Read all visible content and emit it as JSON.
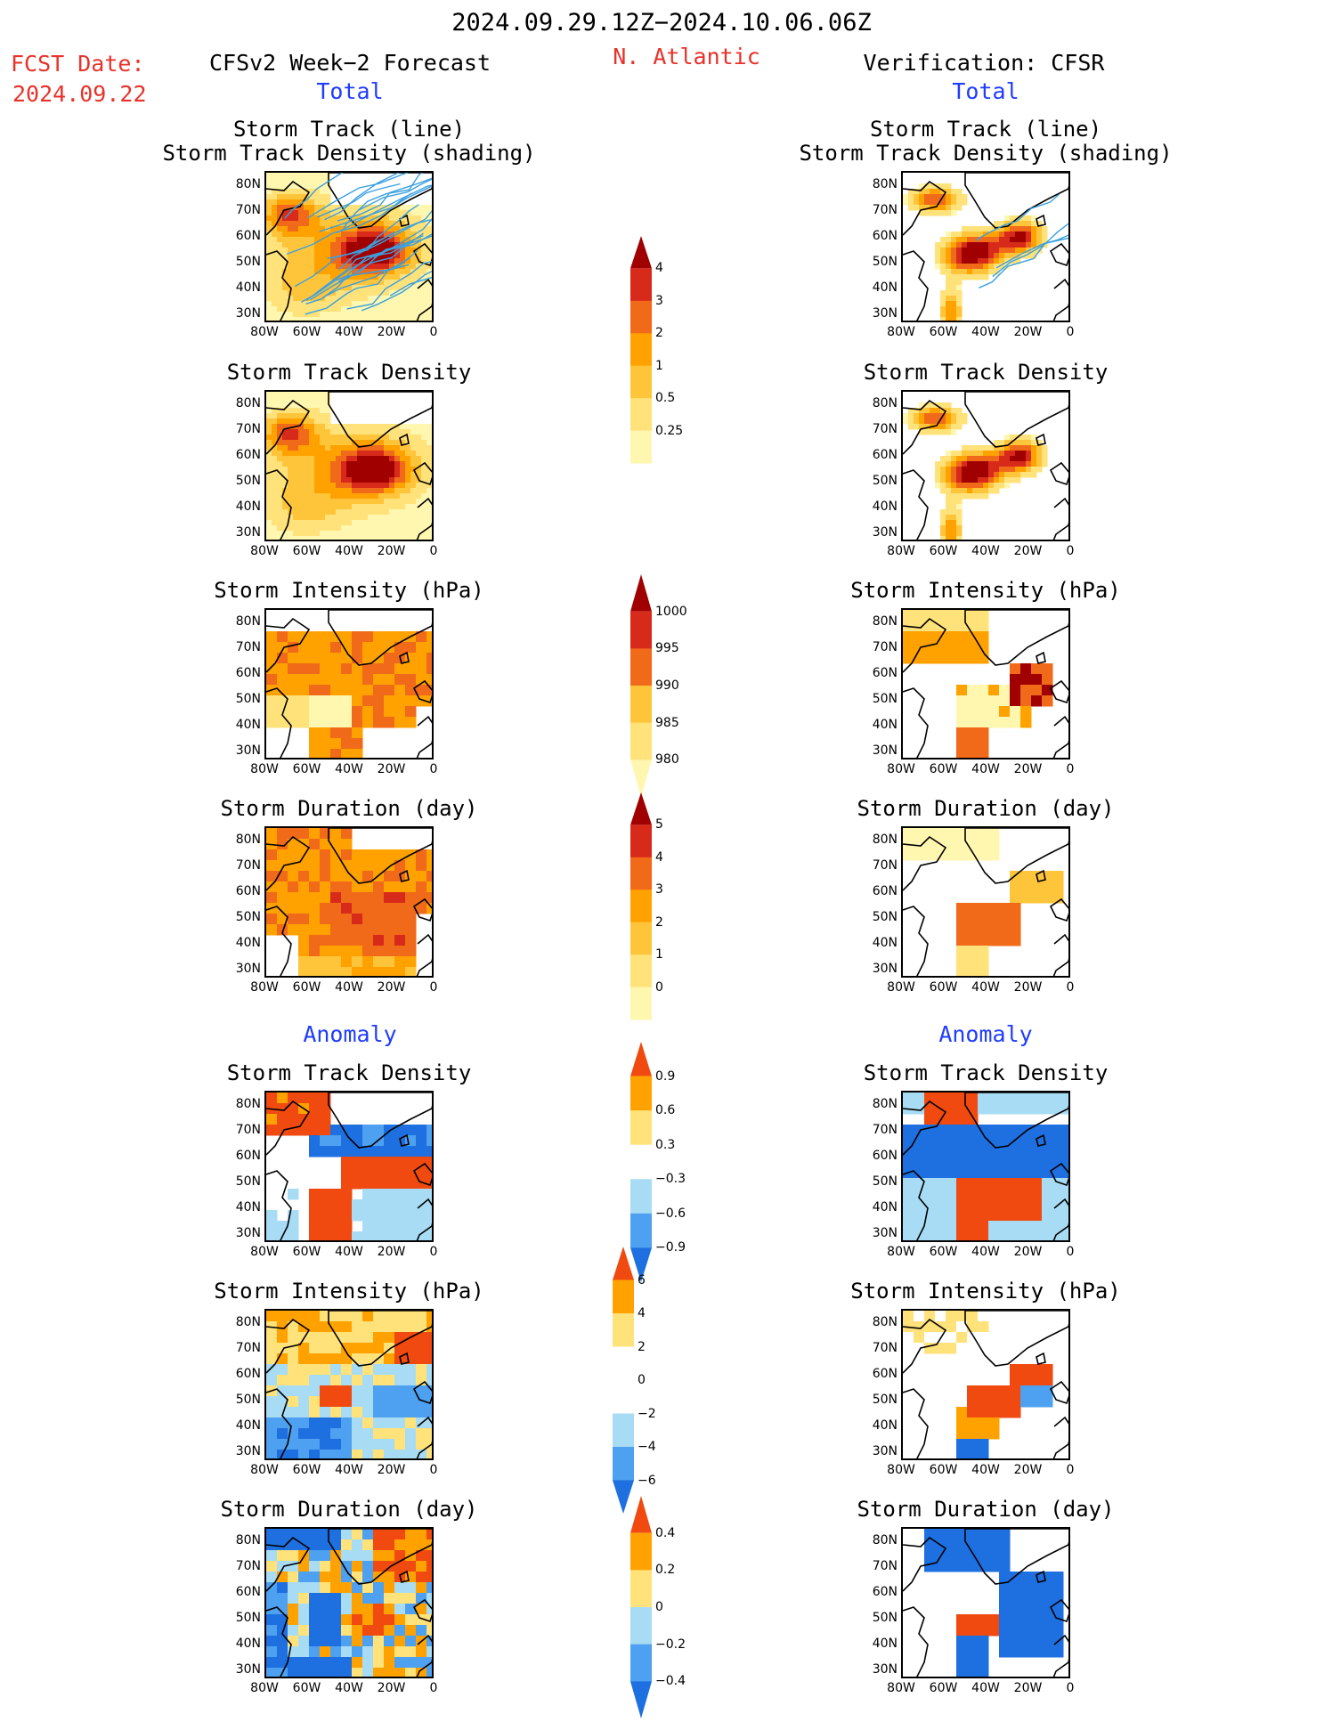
{
  "header": {
    "period": "2024.09.29.12Z−2024.10.06.06Z",
    "fcst_label": "FCST Date:",
    "fcst_date": "2024.09.22",
    "left_title": "CFSv2 Week−2 Forecast",
    "region": "N. Atlantic",
    "right_title": "Verification: CFSR",
    "total_left": "Total",
    "total_right": "Total",
    "anomaly_left": "Anomaly",
    "anomaly_right": "Anomaly"
  },
  "colors": {
    "title_red": "#e8322a",
    "title_blue": "#1f3cff",
    "total_scale": [
      "#fff6b0",
      "#ffe27a",
      "#ffc53a",
      "#ffa200",
      "#f06a1a",
      "#d82a1a",
      "#a00000"
    ],
    "anom_scale": [
      "#1e6fe0",
      "#4ea0f0",
      "#a8dcf5",
      "#ffffff",
      "#ffe27a",
      "#ffa200",
      "#f04a10"
    ]
  },
  "chart_data": [
    {
      "type": "heatmap",
      "id": "total-track-fcst",
      "title": "Storm Track (line) Storm Track Density (shading)",
      "title_lines": [
        "Storm Track (line)",
        "Storm Track Density (shading)"
      ],
      "xlabel": "",
      "ylabel": "",
      "x_ticks": [
        "80W",
        "60W",
        "40W",
        "20W",
        "0"
      ],
      "y_ticks": [
        "80N",
        "70N",
        "60N",
        "50N",
        "40N",
        "30N"
      ],
      "pattern": "dense_east_lines",
      "tracks": true
    },
    {
      "type": "heatmap",
      "id": "total-track-verif",
      "title_lines": [
        "Storm Track (line)",
        "Storm Track Density (shading)"
      ],
      "x_ticks": [
        "80W",
        "60W",
        "40W",
        "20W",
        "0"
      ],
      "y_ticks": [
        "80N",
        "70N",
        "60N",
        "50N",
        "40N",
        "30N"
      ],
      "pattern": "verif_track",
      "tracks": true
    },
    {
      "type": "heatmap",
      "id": "density-fcst",
      "title_lines": [
        "Storm Track Density"
      ],
      "x_ticks": [
        "80W",
        "60W",
        "40W",
        "20W",
        "0"
      ],
      "y_ticks": [
        "80N",
        "70N",
        "60N",
        "50N",
        "40N",
        "30N"
      ],
      "pattern": "dense_east"
    },
    {
      "type": "heatmap",
      "id": "density-verif",
      "title_lines": [
        "Storm Track Density"
      ],
      "x_ticks": [
        "80W",
        "60W",
        "40W",
        "20W",
        "0"
      ],
      "y_ticks": [
        "80N",
        "70N",
        "60N",
        "50N",
        "40N",
        "30N"
      ],
      "pattern": "verif_density"
    },
    {
      "type": "heatmap",
      "id": "intensity-fcst",
      "title_lines": [
        "Storm Intensity (hPa)"
      ],
      "x_ticks": [
        "80W",
        "60W",
        "40W",
        "20W",
        "0"
      ],
      "y_ticks": [
        "80N",
        "70N",
        "60N",
        "50N",
        "40N",
        "30N"
      ],
      "pattern": "int_fcst"
    },
    {
      "type": "heatmap",
      "id": "intensity-verif",
      "title_lines": [
        "Storm Intensity (hPa)"
      ],
      "x_ticks": [
        "80W",
        "60W",
        "40W",
        "20W",
        "0"
      ],
      "y_ticks": [
        "80N",
        "70N",
        "60N",
        "50N",
        "40N",
        "30N"
      ],
      "pattern": "int_verif"
    },
    {
      "type": "heatmap",
      "id": "duration-fcst",
      "title_lines": [
        "Storm Duration (day)"
      ],
      "x_ticks": [
        "80W",
        "60W",
        "40W",
        "20W",
        "0"
      ],
      "y_ticks": [
        "80N",
        "70N",
        "60N",
        "50N",
        "40N",
        "30N"
      ],
      "pattern": "dur_fcst"
    },
    {
      "type": "heatmap",
      "id": "duration-verif",
      "title_lines": [
        "Storm Duration (day)"
      ],
      "x_ticks": [
        "80W",
        "60W",
        "40W",
        "20W",
        "0"
      ],
      "y_ticks": [
        "80N",
        "70N",
        "60N",
        "50N",
        "40N",
        "30N"
      ],
      "pattern": "dur_verif"
    },
    {
      "type": "heatmap",
      "id": "anom-density-fcst",
      "title_lines": [
        "Storm Track Density"
      ],
      "x_ticks": [
        "80W",
        "60W",
        "40W",
        "20W",
        "0"
      ],
      "y_ticks": [
        "80N",
        "70N",
        "60N",
        "50N",
        "40N",
        "30N"
      ],
      "pattern": "anom_dens_fcst"
    },
    {
      "type": "heatmap",
      "id": "anom-density-verif",
      "title_lines": [
        "Storm Track Density"
      ],
      "x_ticks": [
        "80W",
        "60W",
        "40W",
        "20W",
        "0"
      ],
      "y_ticks": [
        "80N",
        "70N",
        "60N",
        "50N",
        "40N",
        "30N"
      ],
      "pattern": "anom_dens_verif"
    },
    {
      "type": "heatmap",
      "id": "anom-intensity-fcst",
      "title_lines": [
        "Storm Intensity (hPa)"
      ],
      "x_ticks": [
        "80W",
        "60W",
        "40W",
        "20W",
        "0"
      ],
      "y_ticks": [
        "80N",
        "70N",
        "60N",
        "50N",
        "40N",
        "30N"
      ],
      "pattern": "anom_int_fcst"
    },
    {
      "type": "heatmap",
      "id": "anom-intensity-verif",
      "title_lines": [
        "Storm Intensity (hPa)"
      ],
      "x_ticks": [
        "80W",
        "60W",
        "40W",
        "20W",
        "0"
      ],
      "y_ticks": [
        "80N",
        "70N",
        "60N",
        "50N",
        "40N",
        "30N"
      ],
      "pattern": "anom_int_verif"
    },
    {
      "type": "heatmap",
      "id": "anom-duration-fcst",
      "title_lines": [
        "Storm Duration (day)"
      ],
      "x_ticks": [
        "80W",
        "60W",
        "40W",
        "20W",
        "0"
      ],
      "y_ticks": [
        "80N",
        "70N",
        "60N",
        "50N",
        "40N",
        "30N"
      ],
      "pattern": "anom_dur_fcst"
    },
    {
      "type": "heatmap",
      "id": "anom-duration-verif",
      "title_lines": [
        "Storm Duration (day)"
      ],
      "x_ticks": [
        "80W",
        "60W",
        "40W",
        "20W",
        "0"
      ],
      "y_ticks": [
        "80N",
        "70N",
        "60N",
        "50N",
        "40N",
        "30N"
      ],
      "pattern": "anom_dur_verif"
    }
  ],
  "colorbars": [
    {
      "id": "cbar-density",
      "labels": [
        "4",
        "3",
        "2",
        "1",
        "0.5",
        "0.25"
      ],
      "scale": "total",
      "order": "desc"
    },
    {
      "id": "cbar-intensity",
      "labels": [
        "1000",
        "995",
        "990",
        "985",
        "980"
      ],
      "scale": "total",
      "order": "asc"
    },
    {
      "id": "cbar-duration",
      "labels": [
        "5",
        "4",
        "3",
        "2",
        "1",
        "0"
      ],
      "scale": "total",
      "order": "desc"
    },
    {
      "id": "cbar-anom-density",
      "labels": [
        "0.9",
        "0.6",
        "0.3",
        "−0.3",
        "−0.6",
        "−0.9"
      ],
      "scale": "anom"
    },
    {
      "id": "cbar-anom-intensity",
      "labels": [
        "6",
        "4",
        "2",
        "0",
        "−2",
        "−4",
        "−6"
      ],
      "scale": "anom"
    },
    {
      "id": "cbar-anom-duration",
      "labels": [
        "0.4",
        "0.2",
        "0",
        "−0.2",
        "−0.4"
      ],
      "scale": "anom"
    }
  ]
}
